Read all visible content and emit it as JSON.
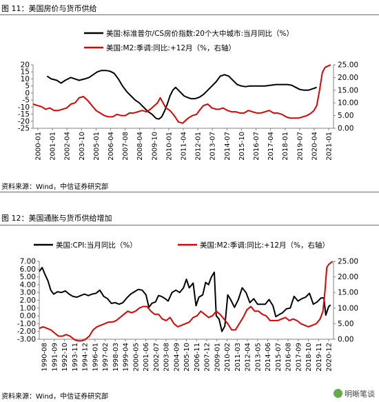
{
  "fig1": {
    "title": "图 11：美国房价与货币供给",
    "source": "资料来源：Wind，中信证券研究部"
  },
  "fig2": {
    "title": "图 12：美国通胀与货币供给增加",
    "source": "资料来源：Wind，中信证券研究部"
  },
  "watermark": {
    "text": "明晰笔谈",
    "icon": "wechat-icon"
  },
  "colors": {
    "black_series": "#000000",
    "red_series": "#e00000",
    "axis": "#808080"
  },
  "chart_data": [
    {
      "type": "line",
      "x_tick_labels": [
        "2000-01",
        "2001-01",
        "2002-04",
        "2003-10",
        "2005-01",
        "2006-04",
        "2007-08",
        "2008-04",
        "2009-10",
        "2010-01",
        "2011-04",
        "2012-01",
        "2013-07",
        "2014-07",
        "2015-10",
        "2016-07",
        "2017-04",
        "2018-01",
        "2019-07",
        "2020-04",
        "2021-01"
      ],
      "x_range": [
        2000.0,
        2021.5
      ],
      "left_axis": {
        "ylim": [
          -25,
          20
        ],
        "ticks": [
          "20",
          "15",
          "10",
          "5",
          "0",
          "-5",
          "-10",
          "-15",
          "-20",
          "-25"
        ]
      },
      "right_axis": {
        "ylim": [
          0,
          25
        ],
        "ticks": [
          "25.00",
          "20.00",
          "15.00",
          "10.00",
          "5.00",
          "0.00"
        ]
      },
      "grid": false,
      "legend_position": "top",
      "series": [
        {
          "name": "美国:标准普尔/CS房价指数:20个大中城市:当月同比（%）",
          "axis": "left",
          "x": [
            2001.0,
            2001.3,
            2001.7,
            2002.0,
            2002.3,
            2002.7,
            2003.0,
            2003.3,
            2003.7,
            2004.0,
            2004.3,
            2004.6,
            2004.9,
            2005.2,
            2005.5,
            2005.8,
            2006.1,
            2006.4,
            2006.7,
            2007.0,
            2007.3,
            2007.6,
            2007.9,
            2008.2,
            2008.5,
            2008.8,
            2009.0,
            2009.2,
            2009.4,
            2009.6,
            2009.8,
            2010.0,
            2010.2,
            2010.5,
            2010.8,
            2011.0,
            2011.3,
            2011.6,
            2011.9,
            2012.2,
            2012.5,
            2012.8,
            2013.1,
            2013.4,
            2013.7,
            2014.0,
            2014.3,
            2014.6,
            2014.9,
            2015.2,
            2015.5,
            2015.8,
            2016.2,
            2016.6,
            2017.0,
            2017.4,
            2017.8,
            2018.2,
            2018.5,
            2018.8,
            2019.1,
            2019.4,
            2019.7,
            2020.0,
            2020.3
          ],
          "y": [
            12,
            10,
            9,
            7,
            9,
            11,
            10,
            9,
            10,
            11,
            13,
            15,
            16,
            16,
            15.5,
            14,
            10,
            5,
            1,
            -2,
            -5,
            -7,
            -10,
            -13,
            -15,
            -18,
            -18.5,
            -17,
            -13,
            -8,
            -2,
            2,
            4,
            1,
            -2,
            -3,
            -4,
            -4,
            -3,
            -1,
            2,
            5,
            8,
            12,
            13,
            12,
            9,
            6,
            5,
            4.5,
            5,
            5,
            5,
            5,
            5.5,
            6,
            6,
            6,
            5.5,
            4,
            2.5,
            2,
            2,
            3,
            4
          ]
        },
        {
          "name": "美国:M2:季调:同比:+12月（%，右轴）",
          "axis": "right",
          "x": [
            2000.0,
            2000.3,
            2000.6,
            2000.9,
            2001.2,
            2001.5,
            2001.8,
            2002.1,
            2002.4,
            2002.7,
            2003.0,
            2003.3,
            2003.6,
            2003.9,
            2004.2,
            2004.5,
            2004.8,
            2005.1,
            2005.4,
            2005.7,
            2006.0,
            2006.3,
            2006.6,
            2006.9,
            2007.2,
            2007.5,
            2007.8,
            2008.1,
            2008.4,
            2008.7,
            2008.9,
            2009.1,
            2009.3,
            2009.5,
            2009.8,
            2010.1,
            2010.4,
            2010.7,
            2010.9,
            2011.1,
            2011.4,
            2011.7,
            2011.9,
            2012.2,
            2012.5,
            2012.8,
            2013.1,
            2013.3,
            2013.6,
            2013.9,
            2014.2,
            2014.5,
            2014.8,
            2015.1,
            2015.4,
            2015.7,
            2016.0,
            2016.3,
            2016.6,
            2016.9,
            2017.2,
            2017.5,
            2017.8,
            2018.1,
            2018.4,
            2018.7,
            2019.0,
            2019.3,
            2019.6,
            2019.9,
            2020.1,
            2020.3,
            2020.5,
            2020.7,
            2020.9,
            2021.1,
            2021.3
          ],
          "y": [
            9.5,
            9,
            8.5,
            7.5,
            8,
            7,
            7,
            7.5,
            8,
            9.5,
            10,
            12,
            12.5,
            11,
            9,
            7,
            6,
            5,
            4.5,
            4.5,
            5.5,
            5,
            5,
            6,
            6,
            6.5,
            7,
            6.5,
            7.5,
            9,
            10,
            12,
            10,
            8,
            7,
            5,
            2.5,
            2,
            3,
            4,
            5,
            5.5,
            7,
            9,
            9.5,
            8,
            7.5,
            7.5,
            8,
            7,
            6.5,
            6.5,
            6,
            6,
            7,
            6.5,
            6,
            6,
            6.5,
            7,
            6,
            6,
            5.5,
            4.5,
            4,
            4,
            4,
            4.5,
            5,
            6,
            7,
            9,
            15,
            22,
            24,
            24.5,
            25
          ]
        }
      ]
    },
    {
      "type": "line",
      "x_tick_labels": [
        "1990-08",
        "1991-09",
        "1992-10",
        "1993-11",
        "1994-12",
        "1996-01",
        "1997-02",
        "1998-03",
        "1999-04",
        "2000-05",
        "2001-06",
        "2002-07",
        "2003-08",
        "2004-09",
        "2005-10",
        "2006-11",
        "2007-12",
        "2009-01",
        "2010-02",
        "2011-03",
        "2012-04",
        "2013-05",
        "2014-06",
        "2015-07",
        "2016-08",
        "2017-09",
        "2018-10",
        "2019-11",
        "2020-12"
      ],
      "x_range": [
        1990.6,
        2021.2
      ],
      "left_axis": {
        "ylim": [
          -3,
          7
        ],
        "ticks": [
          "7.00",
          "6.00",
          "5.00",
          "4.00",
          "3.00",
          "2.00",
          "1.00",
          "0.00",
          "-1.00",
          "-2.00",
          "-3.00"
        ]
      },
      "right_axis": {
        "ylim": [
          0,
          25
        ],
        "ticks": [
          "25.00",
          "20.00",
          "15.00",
          "10.00",
          "5.00",
          "0.00"
        ]
      },
      "grid": false,
      "legend_position": "top",
      "series": [
        {
          "name": "美国:CPI:当月同比（%）",
          "axis": "left",
          "x": [
            1990.6,
            1990.9,
            1991.2,
            1991.5,
            1991.8,
            1992.1,
            1992.5,
            1992.9,
            1993.3,
            1993.7,
            1994.1,
            1994.5,
            1994.9,
            1995.3,
            1995.7,
            1996.1,
            1996.5,
            1996.9,
            1997.3,
            1997.7,
            1998.1,
            1998.5,
            1998.9,
            1999.3,
            1999.7,
            2000.1,
            2000.5,
            2000.9,
            2001.3,
            2001.7,
            2002.0,
            2002.3,
            2002.7,
            2003.0,
            2003.3,
            2003.7,
            2004.0,
            2004.4,
            2004.8,
            2005.2,
            2005.6,
            2005.9,
            2006.2,
            2006.6,
            2006.9,
            2007.2,
            2007.6,
            2007.9,
            2008.2,
            2008.5,
            2008.8,
            2009.0,
            2009.3,
            2009.6,
            2009.9,
            2010.2,
            2010.5,
            2010.9,
            2011.3,
            2011.7,
            2012.1,
            2012.5,
            2012.9,
            2013.3,
            2013.7,
            2014.1,
            2014.5,
            2014.9,
            2015.2,
            2015.6,
            2015.9,
            2016.3,
            2016.7,
            2017.1,
            2017.5,
            2017.9,
            2018.3,
            2018.7,
            2019.1,
            2019.5,
            2019.9,
            2020.2,
            2020.4,
            2020.7,
            2020.9
          ],
          "y": [
            5.7,
            6.2,
            5.3,
            4.5,
            3.3,
            2.8,
            3.1,
            3.0,
            3.2,
            2.8,
            2.5,
            2.4,
            2.6,
            2.8,
            2.6,
            2.8,
            2.9,
            3.3,
            2.5,
            2.2,
            1.6,
            1.7,
            1.5,
            1.7,
            2.3,
            2.8,
            3.1,
            3.4,
            3.3,
            2.7,
            1.1,
            1.6,
            1.8,
            2.6,
            2.5,
            2.2,
            1.9,
            3.0,
            3.3,
            3.0,
            3.6,
            4.7,
            3.6,
            4.2,
            1.3,
            2.4,
            2.7,
            4.3,
            4.0,
            5.0,
            5.6,
            0.0,
            -0.4,
            -2.0,
            -1.3,
            2.7,
            2.1,
            1.1,
            2.1,
            3.6,
            3.0,
            1.7,
            2.2,
            1.5,
            1.5,
            1.5,
            2.1,
            1.3,
            -0.1,
            0.2,
            0.4,
            0.9,
            1.0,
            2.5,
            1.9,
            2.2,
            2.4,
            2.9,
            1.5,
            1.8,
            2.3,
            2.3,
            0.1,
            1.2,
            1.4
          ]
        },
        {
          "name": "美国:M2:季调:同比:+12月（%，右轴）",
          "axis": "right",
          "x": [
            1990.6,
            1991.0,
            1991.4,
            1991.8,
            1992.2,
            1992.6,
            1993.0,
            1993.4,
            1993.8,
            1994.2,
            1994.6,
            1995.0,
            1995.4,
            1995.8,
            1996.2,
            1996.6,
            1997.0,
            1997.4,
            1997.8,
            1998.2,
            1998.6,
            1999.0,
            1999.4,
            1999.8,
            2000.2,
            2000.6,
            2001.0,
            2001.4,
            2001.8,
            2002.2,
            2002.6,
            2003.0,
            2003.4,
            2003.8,
            2004.2,
            2004.6,
            2005.0,
            2005.4,
            2005.8,
            2006.2,
            2006.6,
            2007.0,
            2007.4,
            2007.8,
            2008.2,
            2008.6,
            2009.0,
            2009.4,
            2009.8,
            2010.2,
            2010.6,
            2011.0,
            2011.4,
            2011.8,
            2012.2,
            2012.6,
            2013.0,
            2013.4,
            2013.8,
            2014.2,
            2014.6,
            2015.0,
            2015.4,
            2015.8,
            2016.2,
            2016.6,
            2017.0,
            2017.4,
            2017.8,
            2018.2,
            2018.6,
            2019.0,
            2019.4,
            2019.8,
            2020.1,
            2020.3,
            2020.5,
            2020.7,
            2020.9,
            2021.1
          ],
          "y": [
            3.5,
            4.0,
            3.5,
            3,
            2,
            1,
            1,
            1.5,
            1,
            0,
            -0.5,
            -0.5,
            0,
            1,
            3,
            4,
            4.5,
            5,
            5.5,
            5.5,
            6,
            7,
            8,
            9,
            8.5,
            9,
            10,
            10.5,
            10.5,
            9,
            8,
            8,
            6.5,
            6,
            7,
            5,
            4,
            4.5,
            5,
            5.5,
            7,
            7.5,
            9,
            8,
            7,
            7.5,
            9,
            8,
            6.5,
            5,
            3,
            3,
            5,
            7,
            9.5,
            10.5,
            9,
            9,
            8,
            7.5,
            6,
            6,
            6,
            6.5,
            7,
            6,
            6.5,
            6,
            5,
            4.5,
            4,
            4.5,
            5,
            6.5,
            9,
            15,
            23,
            24,
            24.5,
            25
          ]
        }
      ]
    }
  ]
}
